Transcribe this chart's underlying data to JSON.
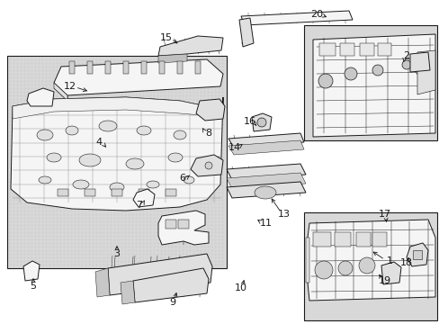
{
  "bg_color": "#ffffff",
  "line_color": "#1a1a1a",
  "part_fill": "#f5f5f5",
  "shaded_fill": "#e0e0e0",
  "box_fill": "#ffffff",
  "main_box_fill": "#e8e8e8",
  "figsize": [
    4.89,
    3.6
  ],
  "dpi": 100,
  "callouts": [
    [
      "1",
      433,
      290,
      412,
      278
    ],
    [
      "2",
      452,
      62,
      448,
      72
    ],
    [
      "3",
      130,
      282,
      130,
      270
    ],
    [
      "4",
      110,
      158,
      120,
      166
    ],
    [
      "5",
      37,
      318,
      37,
      306
    ],
    [
      "6",
      203,
      198,
      213,
      193
    ],
    [
      "7",
      155,
      228,
      162,
      220
    ],
    [
      "8",
      232,
      148,
      225,
      142
    ],
    [
      "9",
      192,
      336,
      197,
      322
    ],
    [
      "10",
      268,
      320,
      272,
      308
    ],
    [
      "11",
      296,
      248,
      286,
      244
    ],
    [
      "12",
      78,
      96,
      100,
      102
    ],
    [
      "13",
      316,
      238,
      300,
      218
    ],
    [
      "14",
      261,
      164,
      272,
      158
    ],
    [
      "15",
      185,
      42,
      200,
      50
    ],
    [
      "16",
      278,
      135,
      287,
      142
    ],
    [
      "17",
      428,
      238,
      430,
      250
    ],
    [
      "18",
      452,
      292,
      455,
      283
    ],
    [
      "19",
      428,
      312,
      420,
      302
    ],
    [
      "20",
      352,
      16,
      366,
      20
    ]
  ]
}
